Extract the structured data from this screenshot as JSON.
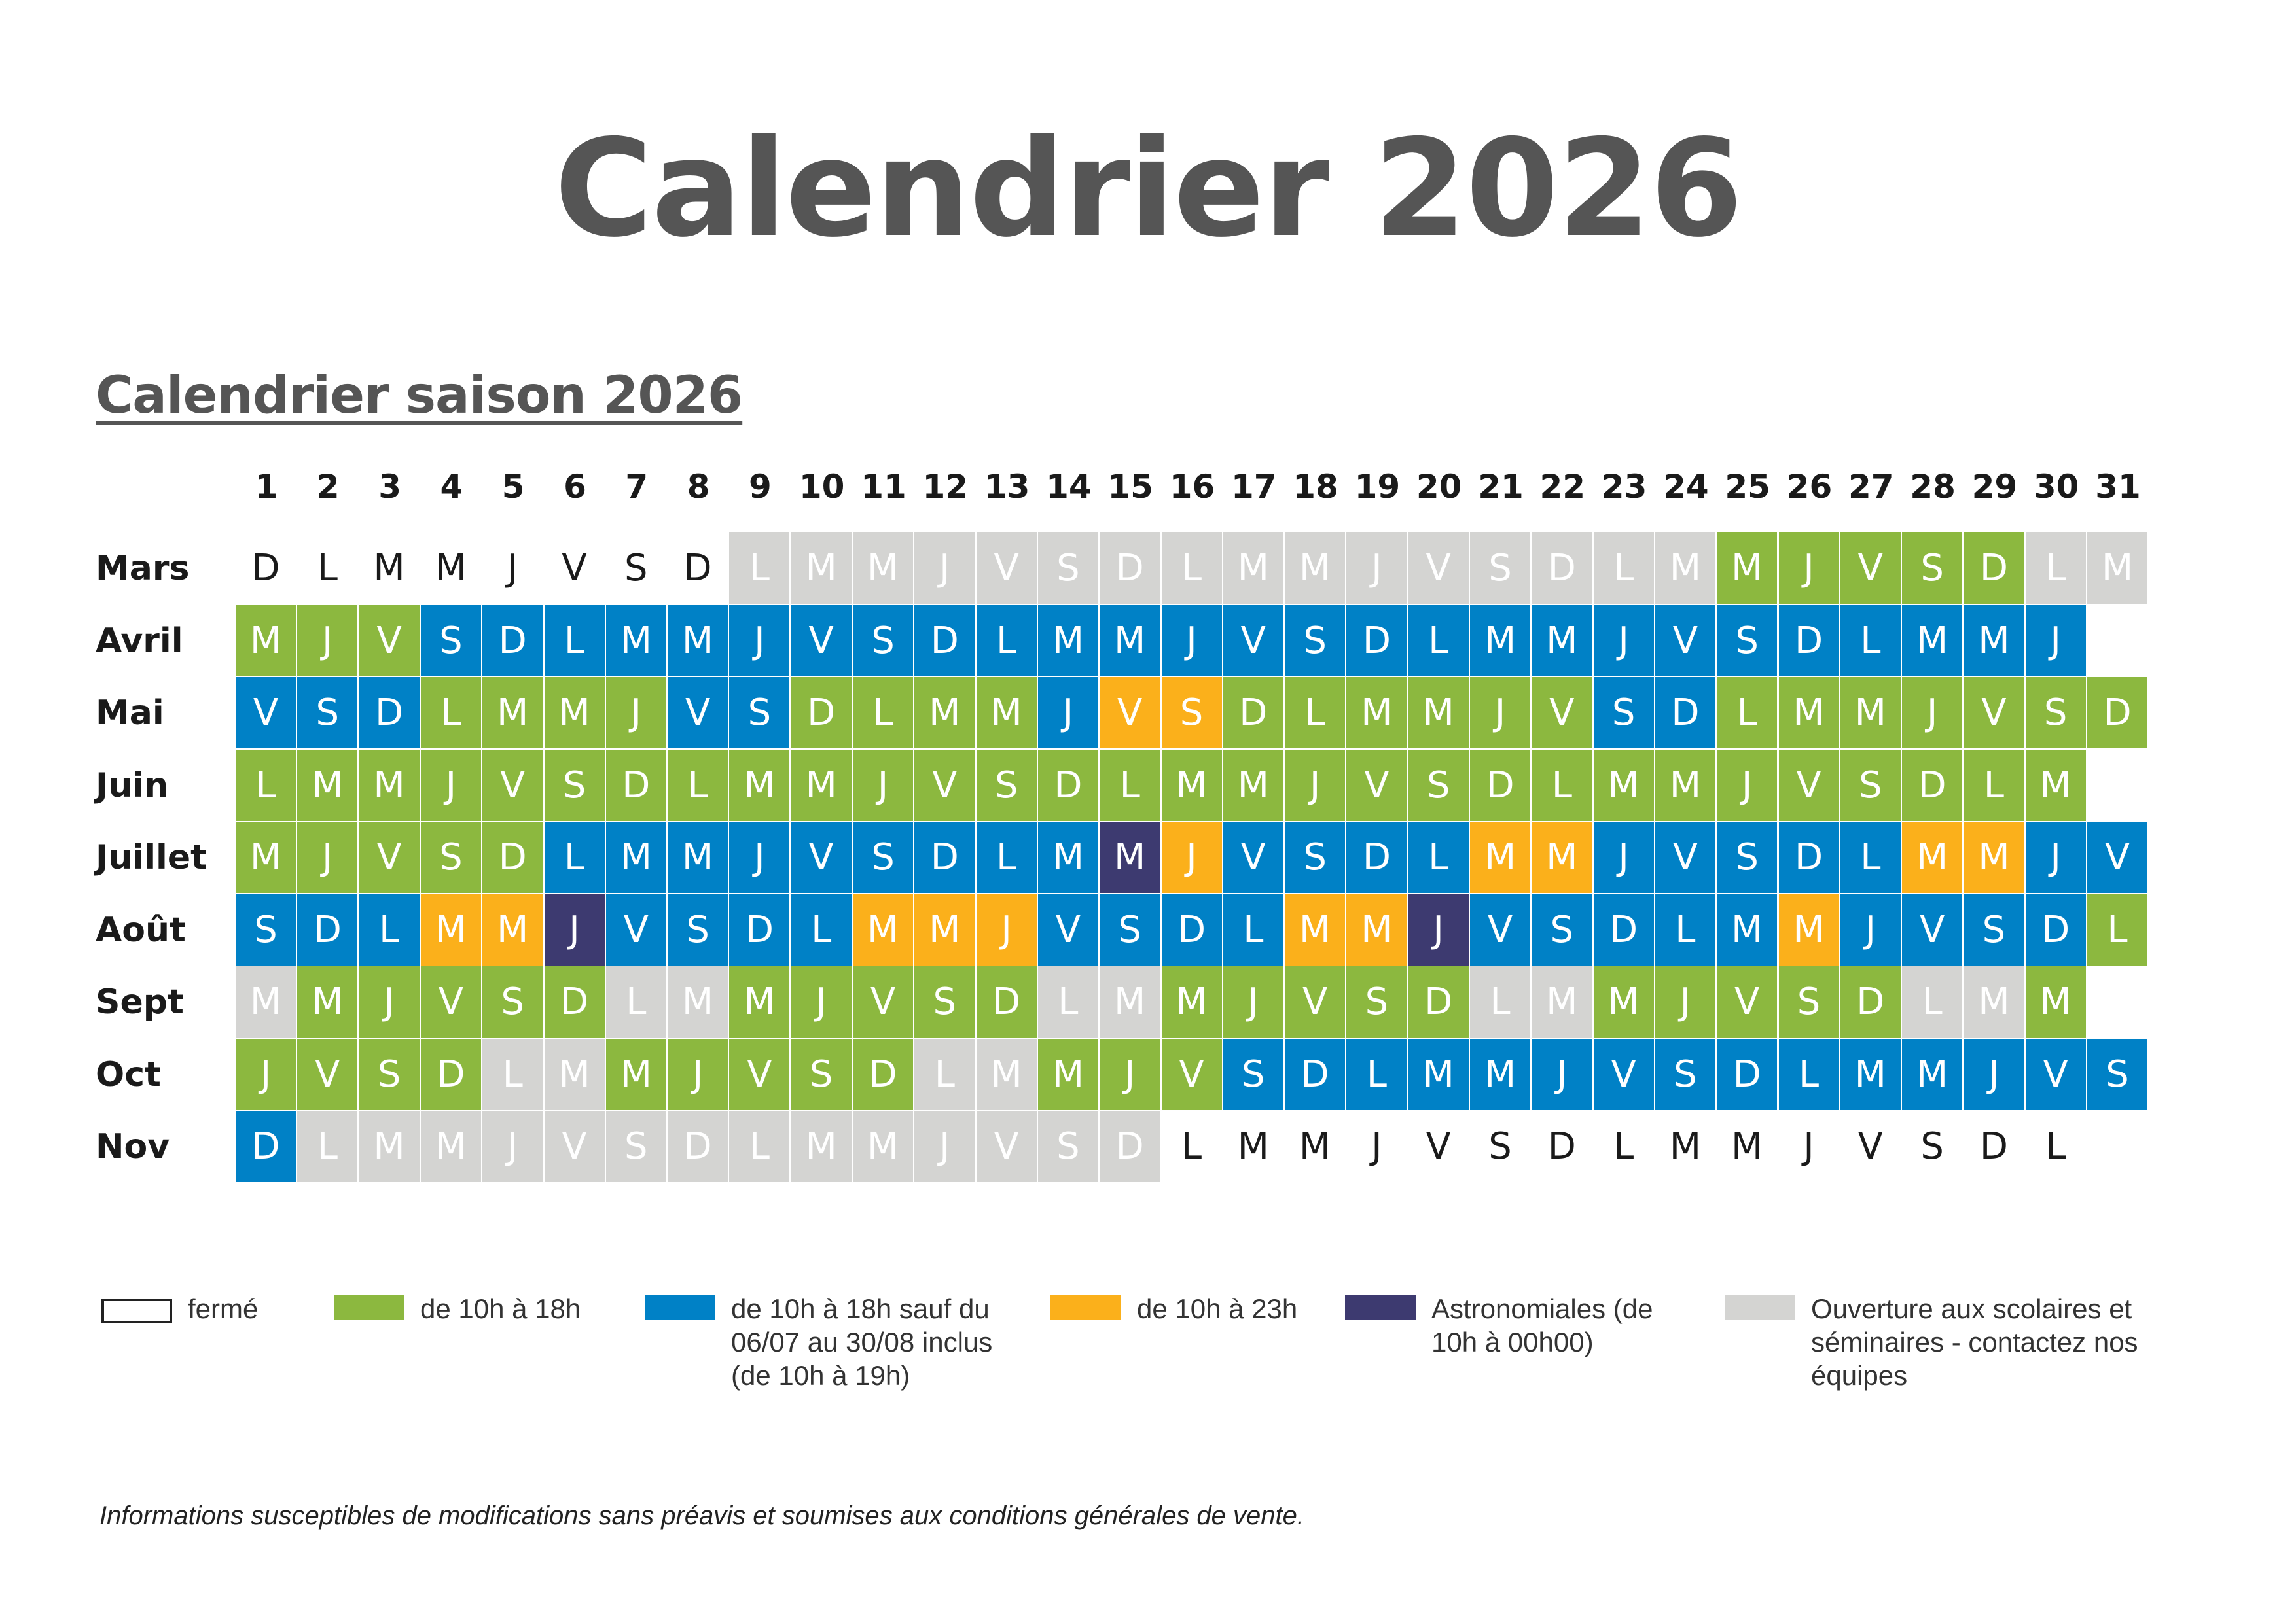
{
  "title": "Calendrier 2026",
  "subtitle": "Calendrier saison 2026",
  "colors": {
    "f": "#ffffff",
    "g": "#8cb83f",
    "b": "#0081c6",
    "o": "#fbb01b",
    "p": "#3d3a70",
    "x": "#d4d4d2"
  },
  "day_numbers": [
    "1",
    "2",
    "3",
    "4",
    "5",
    "6",
    "7",
    "8",
    "9",
    "10",
    "11",
    "12",
    "13",
    "14",
    "15",
    "16",
    "17",
    "18",
    "19",
    "20",
    "21",
    "22",
    "23",
    "24",
    "25",
    "26",
    "27",
    "28",
    "29",
    "30",
    "31"
  ],
  "months": [
    {
      "name": "Mars",
      "days": "DLMMJVSDLMMJVSDLMMJVSDLMMJVSDLM",
      "status": "ffffffffxxxxxxxxxxxxxxxxgggggxx"
    },
    {
      "name": "Avril",
      "days": "MJVSDLMMJVSDLMMJVSDLMMJVSDLMMJ",
      "status": "gggbbbbbbbbbbbbbbbbbbbbbbbbbbb"
    },
    {
      "name": "Mai",
      "days": "VSDLMMJVSDLMMJVSDLMMJVSDLMMJVSD",
      "status": "bbbggggbbggggbooggggggbbggggggg"
    },
    {
      "name": "Juin",
      "days": "LMMJVSDLMMJVSDLMMJVSDLMMJVSDLM",
      "status": "gggggggggggggggggggggggggggggg"
    },
    {
      "name": "Juillet",
      "days": "MJVSDLMMJVSDLMMJVSDLMMJVSDLMMJV",
      "status": "gggggbbbbbbbbbpobbbboobbbbboobb"
    },
    {
      "name": "Août",
      "days": "SDLMMJVSDLMMJVSDLMMJVSDLMMJVSDL",
      "status": "bbboopbbbbooobbbboopbbbbbobbbbg"
    },
    {
      "name": "Sept",
      "days": "MMJVSDLMMJVSDLMMJVSDLMMJVSDLMM",
      "status": "xgggggxxgggggxxgggggxxgggggxxg"
    },
    {
      "name": "Oct",
      "days": "JVSDLMMJVSDLMMJVSDLMMJVSDLMMJVS",
      "status": "ggggxxgggggxxgggbbbbbbbbbbbbbbb"
    },
    {
      "name": "Nov",
      "days": "DLMMJVSDLMMJVSDLMMJVSDLMMJVSDL",
      "status": "bxxxxxxxxxxxxxxfffffffffffffff"
    }
  ],
  "legend": [
    {
      "key": "f",
      "label": "fermé"
    },
    {
      "key": "g",
      "label": "de 10h à 18h"
    },
    {
      "key": "b",
      "label": "de 10h à 18h sauf du 06/07 au 30/08 inclus (de 10h à 19h)"
    },
    {
      "key": "o",
      "label": "de 10h à 23h"
    },
    {
      "key": "p",
      "label": "Astronomiales (de 10h à 00h00)"
    },
    {
      "key": "x",
      "label": "Ouverture aux scolaires et séminaires - contactez nos équipes"
    }
  ],
  "footnote": "Informations susceptibles de modifications sans préavis et soumises aux conditions générales de vente."
}
